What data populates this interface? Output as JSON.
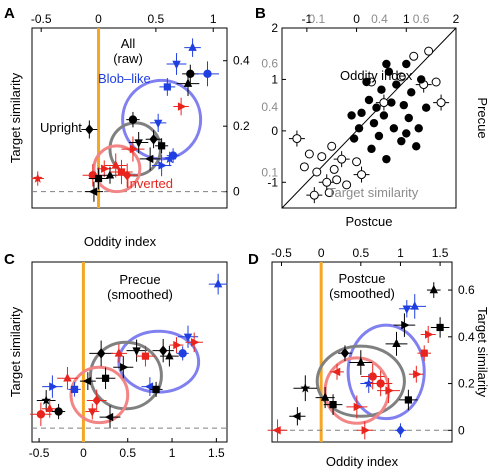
{
  "figure": {
    "colors": {
      "orange": "#f5a623",
      "blue": "#1f3fe0",
      "red": "#e8241d",
      "black": "#000000",
      "gray_text": "#8c8c8c",
      "ellipse_blue": "#8080f0",
      "ellipse_gray": "#808080",
      "ellipse_red": "#f28585"
    }
  },
  "chart_data": [
    {
      "panel": "A",
      "type": "scatter",
      "title": "All\n(raw)",
      "ylabel": "Target similarity",
      "x_ticks": [
        "-0.5",
        "0",
        "0.5",
        "1"
      ],
      "y_ticks": [
        "0",
        "0.2",
        "0.4"
      ],
      "xlim": [
        -0.58,
        1.12
      ],
      "ylim": [
        -0.05,
        0.5
      ],
      "annotations": {
        "blob": "Blob–like",
        "upright": "Upright",
        "inverted": "Inverted"
      },
      "ellipses": [
        {
          "series": "Blob-like",
          "color": "#8080f0",
          "cx": 0.55,
          "cy": 0.22,
          "rx": 0.34,
          "ry": 0.12
        },
        {
          "series": "Upright",
          "color": "#808080",
          "cx": 0.32,
          "cy": 0.13,
          "rx": 0.22,
          "ry": 0.08
        },
        {
          "series": "Inverted",
          "color": "#f28585",
          "cx": 0.16,
          "cy": 0.07,
          "rx": 0.2,
          "ry": 0.07
        }
      ],
      "points": [
        {
          "x": -0.53,
          "y": 0.04,
          "m": "star",
          "c": "red"
        },
        {
          "x": -0.08,
          "y": 0.19,
          "m": "diamond",
          "c": "black"
        },
        {
          "x": -0.05,
          "y": 0.05,
          "m": "circle",
          "c": "red"
        },
        {
          "x": -0.04,
          "y": 0.0,
          "m": "tri-l",
          "c": "black"
        },
        {
          "x": 0.0,
          "y": 0.04,
          "m": "square",
          "c": "black"
        },
        {
          "x": 0.05,
          "y": 0.07,
          "m": "tri-r",
          "c": "red"
        },
        {
          "x": 0.1,
          "y": 0.05,
          "m": "tri-u",
          "c": "black"
        },
        {
          "x": 0.15,
          "y": 0.08,
          "m": "tri-u",
          "c": "red"
        },
        {
          "x": 0.2,
          "y": 0.06,
          "m": "square",
          "c": "red"
        },
        {
          "x": 0.25,
          "y": 0.05,
          "m": "diamond",
          "c": "red"
        },
        {
          "x": 0.3,
          "y": 0.13,
          "m": "tri-r",
          "c": "red"
        },
        {
          "x": 0.3,
          "y": 0.22,
          "m": "circle",
          "c": "black"
        },
        {
          "x": 0.35,
          "y": 0.15,
          "m": "tri-d",
          "c": "black"
        },
        {
          "x": 0.45,
          "y": 0.1,
          "m": "tri-l",
          "c": "black"
        },
        {
          "x": 0.48,
          "y": 0.16,
          "m": "diamond",
          "c": "black"
        },
        {
          "x": 0.52,
          "y": 0.21,
          "m": "tri-d",
          "c": "blue"
        },
        {
          "x": 0.55,
          "y": 0.08,
          "m": "tri-r",
          "c": "blue"
        },
        {
          "x": 0.55,
          "y": 0.14,
          "m": "square",
          "c": "black"
        },
        {
          "x": 0.6,
          "y": 0.32,
          "m": "square",
          "c": "blue"
        },
        {
          "x": 0.62,
          "y": 0.1,
          "m": "star",
          "c": "blue"
        },
        {
          "x": 0.65,
          "y": 0.11,
          "m": "circle",
          "c": "blue"
        },
        {
          "x": 0.68,
          "y": 0.39,
          "m": "tri-d",
          "c": "blue"
        },
        {
          "x": 0.72,
          "y": 0.26,
          "m": "tri-r",
          "c": "red"
        },
        {
          "x": 0.78,
          "y": 0.33,
          "m": "tri-u",
          "c": "black"
        },
        {
          "x": 0.8,
          "y": 0.36,
          "m": "circle",
          "c": "black"
        },
        {
          "x": 0.82,
          "y": 0.44,
          "m": "tri-u",
          "c": "blue"
        },
        {
          "x": 0.95,
          "y": 0.36,
          "m": "circle",
          "c": "blue"
        }
      ]
    },
    {
      "panel": "B",
      "type": "scatter",
      "title": "Oddity index",
      "subtitle": "Target similarity",
      "xlabel": "Postcue",
      "ylabel": "Precue",
      "x_ticks_black": [
        "-1",
        "0",
        "1",
        "2"
      ],
      "x_ticks_gray": [
        "0.1",
        "0.4",
        "0.6"
      ],
      "y_ticks_black": [
        "-1",
        "0",
        "1",
        "2"
      ],
      "y_ticks_gray": [
        "0.1",
        "0.4",
        "0.6"
      ],
      "xlim": [
        -1.5,
        2.0
      ],
      "ylim": [
        -1.5,
        2.0
      ],
      "diagonal": true,
      "filled_series": "Oddity index",
      "open_series": "Target similarity",
      "filled_points": [
        [
          -0.05,
          -0.15
        ],
        [
          0.1,
          0.35
        ],
        [
          0.2,
          0.95
        ],
        [
          0.3,
          -0.35
        ],
        [
          0.35,
          0.15
        ],
        [
          0.4,
          0.45
        ],
        [
          0.45,
          -0.1
        ],
        [
          0.5,
          0.8
        ],
        [
          0.55,
          0.3
        ],
        [
          0.6,
          -0.55
        ],
        [
          0.65,
          1.15
        ],
        [
          0.7,
          0.55
        ],
        [
          0.75,
          0.05
        ],
        [
          0.8,
          0.9
        ],
        [
          0.9,
          -0.2
        ],
        [
          0.95,
          0.5
        ],
        [
          1.0,
          1.3
        ],
        [
          1.05,
          0.25
        ],
        [
          1.1,
          0.75
        ],
        [
          1.2,
          -0.3
        ],
        [
          1.25,
          0.05
        ],
        [
          1.3,
          1.0
        ],
        [
          1.4,
          0.45
        ],
        [
          1.0,
          -0.05
        ],
        [
          0.25,
          0.6
        ],
        [
          0.05,
          0.05
        ],
        [
          -0.1,
          0.3
        ],
        [
          0.6,
          1.3
        ]
      ],
      "open_points": [
        [
          -1.2,
          -0.15
        ],
        [
          -1.05,
          -0.7
        ],
        [
          -0.95,
          -0.45
        ],
        [
          -0.85,
          -1.25
        ],
        [
          -0.8,
          -0.8
        ],
        [
          -0.7,
          -0.5
        ],
        [
          -0.6,
          -1.0
        ],
        [
          -0.5,
          -0.3
        ],
        [
          -0.4,
          -0.95
        ],
        [
          -0.3,
          -0.55
        ],
        [
          -0.2,
          -1.05
        ],
        [
          0.0,
          -0.6
        ],
        [
          0.1,
          -0.85
        ],
        [
          -0.55,
          -1.2
        ],
        [
          -0.45,
          -0.75
        ],
        [
          0.55,
          0.55
        ],
        [
          0.9,
          1.05
        ],
        [
          1.15,
          1.45
        ],
        [
          1.35,
          0.9
        ],
        [
          1.45,
          1.55
        ],
        [
          1.6,
          0.95
        ],
        [
          1.7,
          0.55
        ],
        [
          0.3,
          0.95
        ]
      ]
    },
    {
      "panel": "C",
      "type": "scatter",
      "title": "Precue\n(smoothed)",
      "xlabel": "Oddity index",
      "ylabel": "Target similarity",
      "x_ticks": [
        "-0.5",
        "0",
        "0.5",
        "1",
        "1.5"
      ],
      "xlim": [
        -0.58,
        1.62
      ],
      "ylim": [
        -0.05,
        0.6
      ],
      "ellipses": [
        {
          "series": "Blob-like",
          "color": "#8080f0",
          "cx": 0.85,
          "cy": 0.24,
          "rx": 0.45,
          "ry": 0.11
        },
        {
          "series": "Upright",
          "color": "#808080",
          "cx": 0.48,
          "cy": 0.19,
          "rx": 0.4,
          "ry": 0.12
        },
        {
          "series": "Inverted",
          "color": "#f28585",
          "cx": 0.18,
          "cy": 0.12,
          "rx": 0.32,
          "ry": 0.1
        }
      ],
      "points": [
        {
          "x": -0.48,
          "y": 0.05,
          "m": "circle",
          "c": "red"
        },
        {
          "x": -0.42,
          "y": 0.1,
          "m": "star",
          "c": "black"
        },
        {
          "x": -0.38,
          "y": 0.07,
          "m": "tri-u",
          "c": "red"
        },
        {
          "x": -0.35,
          "y": 0.15,
          "m": "tri-r",
          "c": "blue"
        },
        {
          "x": -0.28,
          "y": 0.06,
          "m": "circle",
          "c": "black"
        },
        {
          "x": -0.18,
          "y": 0.18,
          "m": "tri-u",
          "c": "red"
        },
        {
          "x": -0.1,
          "y": 0.14,
          "m": "square",
          "c": "blue"
        },
        {
          "x": 0.05,
          "y": 0.17,
          "m": "tri-l",
          "c": "black"
        },
        {
          "x": 0.1,
          "y": 0.06,
          "m": "tri-d",
          "c": "red"
        },
        {
          "x": 0.15,
          "y": 0.1,
          "m": "diamond",
          "c": "red"
        },
        {
          "x": 0.2,
          "y": 0.27,
          "m": "diamond",
          "c": "black"
        },
        {
          "x": 0.25,
          "y": 0.18,
          "m": "square",
          "c": "black"
        },
        {
          "x": 0.3,
          "y": 0.04,
          "m": "tri-l",
          "c": "black"
        },
        {
          "x": 0.4,
          "y": 0.27,
          "m": "tri-u",
          "c": "red"
        },
        {
          "x": 0.45,
          "y": 0.22,
          "m": "tri-r",
          "c": "black"
        },
        {
          "x": 0.6,
          "y": 0.28,
          "m": "tri-d",
          "c": "black"
        },
        {
          "x": 0.7,
          "y": 0.26,
          "m": "square",
          "c": "red"
        },
        {
          "x": 0.75,
          "y": 0.15,
          "m": "tri-l",
          "c": "blue"
        },
        {
          "x": 0.82,
          "y": 0.14,
          "m": "square",
          "c": "black"
        },
        {
          "x": 0.9,
          "y": 0.28,
          "m": "diamond",
          "c": "black"
        },
        {
          "x": 0.97,
          "y": 0.26,
          "m": "tri-u",
          "c": "black"
        },
        {
          "x": 1.05,
          "y": 0.3,
          "m": "tri-r",
          "c": "red"
        },
        {
          "x": 1.12,
          "y": 0.27,
          "m": "circle",
          "c": "blue"
        },
        {
          "x": 1.18,
          "y": 0.33,
          "m": "tri-d",
          "c": "blue"
        },
        {
          "x": 1.25,
          "y": 0.31,
          "m": "tri-r",
          "c": "red"
        },
        {
          "x": 1.52,
          "y": 0.52,
          "m": "tri-u",
          "c": "blue"
        }
      ]
    },
    {
      "panel": "D",
      "type": "scatter",
      "title": "Postcue\n(smoothed)",
      "xlabel": "Oddity index",
      "ylabel": "Target similarity",
      "x_ticks": [
        "-0.5",
        "0",
        "0.5",
        "1",
        "1.5"
      ],
      "y_ticks": [
        "0",
        "0.2",
        "0.4",
        "0.6"
      ],
      "xlim": [
        -0.62,
        1.65
      ],
      "ylim": [
        -0.05,
        0.72
      ],
      "ellipses": [
        {
          "series": "Blob-like",
          "color": "#8080f0",
          "cx": 0.82,
          "cy": 0.25,
          "rx": 0.48,
          "ry": 0.2
        },
        {
          "series": "Upright",
          "color": "#808080",
          "cx": 0.5,
          "cy": 0.21,
          "rx": 0.55,
          "ry": 0.15
        },
        {
          "series": "Inverted",
          "color": "#f28585",
          "cx": 0.45,
          "cy": 0.17,
          "rx": 0.4,
          "ry": 0.14
        }
      ],
      "points": [
        {
          "x": -0.55,
          "y": 0.0,
          "m": "tri-l",
          "c": "red"
        },
        {
          "x": -0.3,
          "y": 0.06,
          "m": "tri-l",
          "c": "black"
        },
        {
          "x": -0.2,
          "y": 0.18,
          "m": "star",
          "c": "black"
        },
        {
          "x": 0.05,
          "y": 0.14,
          "m": "tri-u",
          "c": "black"
        },
        {
          "x": 0.15,
          "y": 0.11,
          "m": "square",
          "c": "black"
        },
        {
          "x": 0.2,
          "y": 0.25,
          "m": "tri-l",
          "c": "red"
        },
        {
          "x": 0.3,
          "y": 0.33,
          "m": "diamond",
          "c": "black"
        },
        {
          "x": 0.45,
          "y": 0.1,
          "m": "tri-r",
          "c": "red"
        },
        {
          "x": 0.5,
          "y": 0.29,
          "m": "tri-u",
          "c": "black"
        },
        {
          "x": 0.55,
          "y": 0.0,
          "m": "tri-r",
          "c": "red"
        },
        {
          "x": 0.6,
          "y": 0.2,
          "m": "star",
          "c": "blue"
        },
        {
          "x": 0.65,
          "y": 0.23,
          "m": "circle",
          "c": "red"
        },
        {
          "x": 0.75,
          "y": 0.2,
          "m": "circle",
          "c": "red"
        },
        {
          "x": 0.85,
          "y": 0.17,
          "m": "tri-r",
          "c": "red"
        },
        {
          "x": 0.95,
          "y": 0.37,
          "m": "tri-u",
          "c": "black"
        },
        {
          "x": 1.0,
          "y": 0.0,
          "m": "diamond",
          "c": "blue"
        },
        {
          "x": 1.05,
          "y": 0.45,
          "m": "tri-r",
          "c": "black"
        },
        {
          "x": 1.1,
          "y": 0.13,
          "m": "square",
          "c": "black"
        },
        {
          "x": 1.2,
          "y": 0.24,
          "m": "tri-r",
          "c": "red"
        },
        {
          "x": 1.3,
          "y": 0.33,
          "m": "square",
          "c": "red"
        },
        {
          "x": 1.35,
          "y": 0.41,
          "m": "tri-r",
          "c": "red"
        },
        {
          "x": 1.5,
          "y": 0.44,
          "m": "square",
          "c": "black"
        },
        {
          "x": 1.08,
          "y": 0.52,
          "m": "tri-d",
          "c": "blue"
        },
        {
          "x": 1.18,
          "y": 0.53,
          "m": "tri-u",
          "c": "blue"
        },
        {
          "x": 1.42,
          "y": 0.6,
          "m": "tri-u",
          "c": "black"
        }
      ]
    }
  ]
}
